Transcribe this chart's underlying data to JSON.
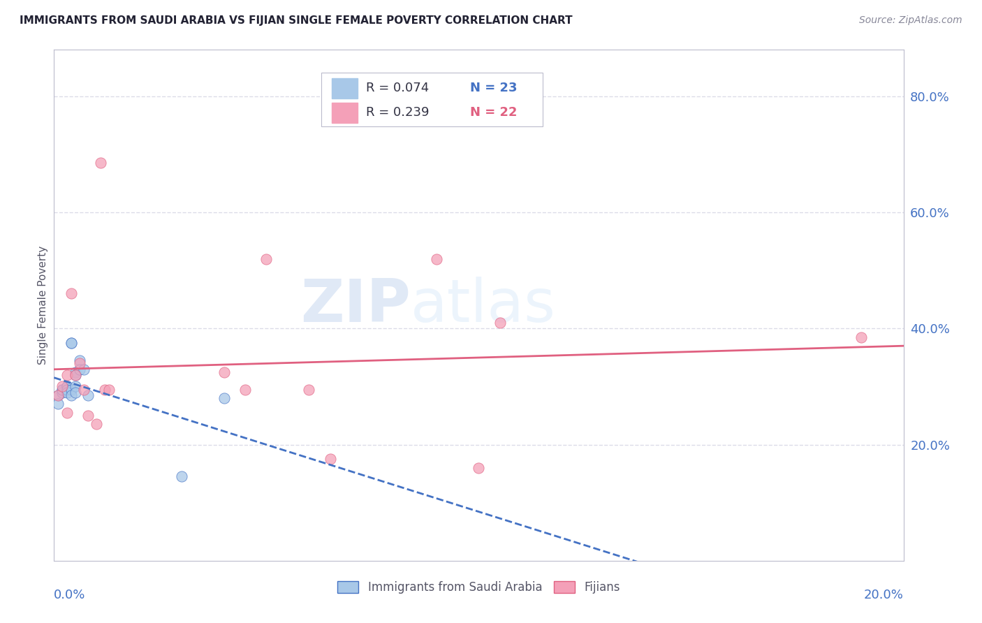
{
  "title": "IMMIGRANTS FROM SAUDI ARABIA VS FIJIAN SINGLE FEMALE POVERTY CORRELATION CHART",
  "source": "Source: ZipAtlas.com",
  "ylabel": "Single Female Poverty",
  "xlim": [
    0.0,
    0.2
  ],
  "ylim": [
    0.0,
    0.88
  ],
  "legend_label1": "Immigrants from Saudi Arabia",
  "legend_label2": "Fijians",
  "color_blue": "#A8C8E8",
  "color_pink": "#F4A0B8",
  "color_blue_dark": "#4472C4",
  "color_pink_dark": "#E06080",
  "saudi_x": [
    0.001,
    0.001,
    0.002,
    0.002,
    0.002,
    0.003,
    0.003,
    0.003,
    0.003,
    0.004,
    0.004,
    0.004,
    0.004,
    0.005,
    0.005,
    0.005,
    0.005,
    0.006,
    0.006,
    0.007,
    0.008,
    0.03,
    0.04
  ],
  "saudi_y": [
    0.285,
    0.27,
    0.295,
    0.29,
    0.295,
    0.3,
    0.3,
    0.295,
    0.29,
    0.375,
    0.375,
    0.295,
    0.285,
    0.325,
    0.32,
    0.3,
    0.29,
    0.345,
    0.33,
    0.33,
    0.285,
    0.145,
    0.28
  ],
  "fijian_x": [
    0.001,
    0.002,
    0.003,
    0.003,
    0.004,
    0.005,
    0.006,
    0.007,
    0.008,
    0.01,
    0.011,
    0.012,
    0.013,
    0.04,
    0.045,
    0.05,
    0.06,
    0.065,
    0.09,
    0.1,
    0.105,
    0.19
  ],
  "fijian_y": [
    0.285,
    0.3,
    0.32,
    0.255,
    0.46,
    0.32,
    0.34,
    0.295,
    0.25,
    0.235,
    0.685,
    0.295,
    0.295,
    0.325,
    0.295,
    0.52,
    0.295,
    0.175,
    0.52,
    0.16,
    0.41,
    0.385
  ],
  "watermark": "ZIPatlas",
  "background_color": "#FFFFFF",
  "grid_color": "#DCDCE8"
}
